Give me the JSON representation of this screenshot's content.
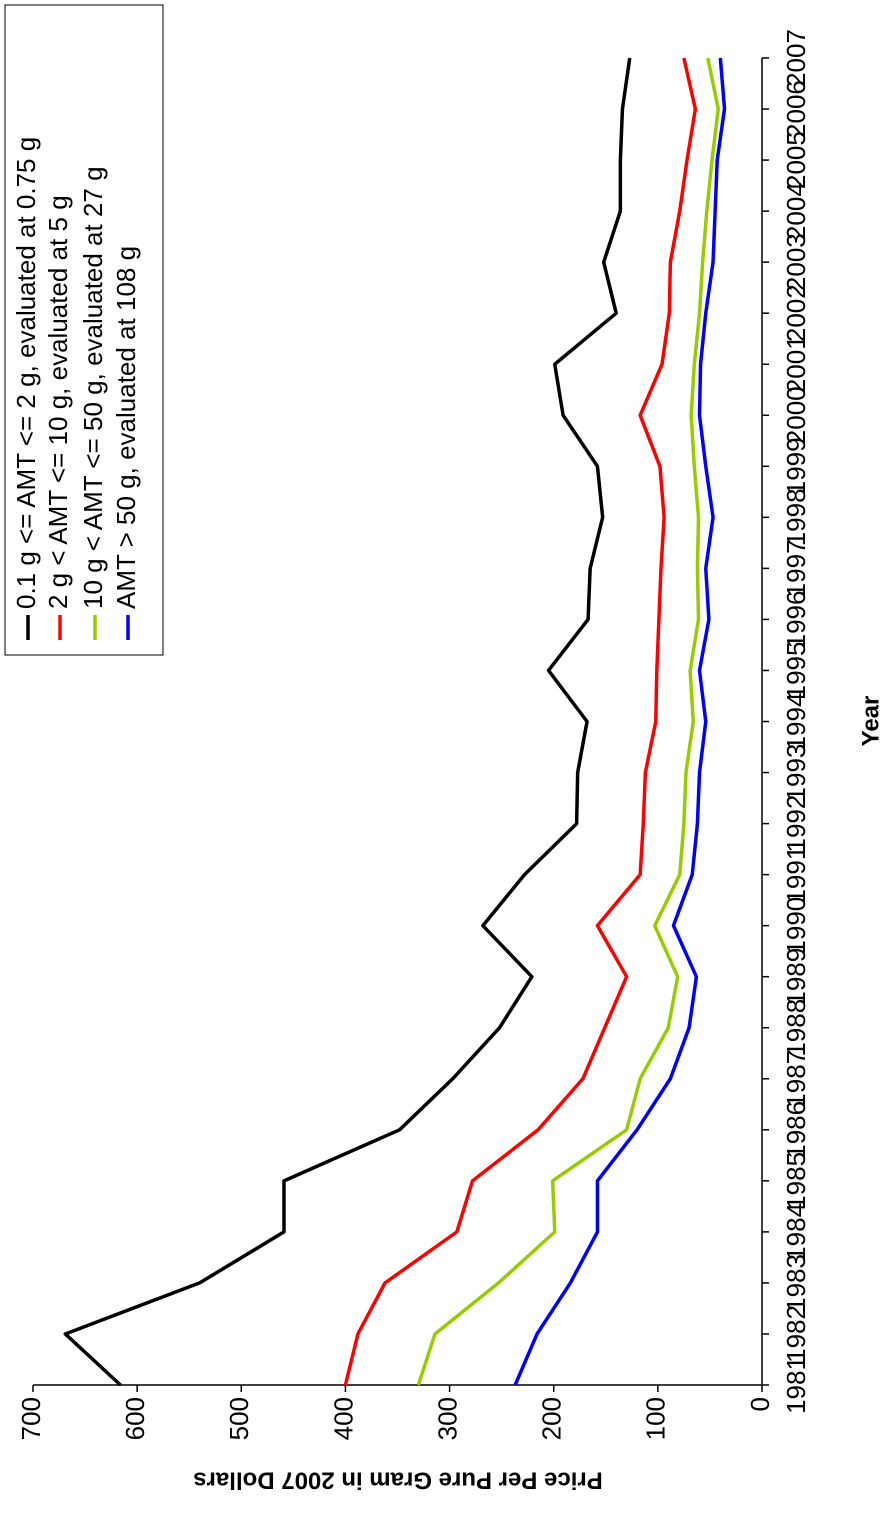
{
  "chart_data": {
    "type": "line",
    "xlabel": "Year",
    "ylabel": "Price Per Pure Gram in 2007 Dollars",
    "categories": [
      "1981",
      "1982",
      "1983",
      "1984",
      "1985",
      "1986",
      "1987",
      "1988",
      "1989",
      "1990",
      "1991",
      "1992",
      "1993",
      "1994",
      "1995",
      "1996",
      "1997",
      "1998",
      "1999",
      "2000",
      "2001",
      "2002",
      "2003",
      "2004",
      "2005",
      "2006",
      "2007"
    ],
    "ylim": [
      0,
      700
    ],
    "yticks": [
      0,
      100,
      200,
      300,
      400,
      500,
      600,
      700
    ],
    "grid": false,
    "legend": "upper right",
    "series": [
      {
        "name": "0.1 g <= AMT <= 2 g, evaluated at 0.75 g",
        "color": "#000000",
        "label_color": "#000000",
        "values": [
          616,
          669,
          540,
          459,
          459,
          348,
          297,
          252,
          221,
          268,
          228,
          178,
          177,
          168,
          205,
          167,
          165,
          153,
          158,
          191,
          199,
          140,
          152,
          136,
          136,
          134,
          127
        ]
      },
      {
        "name": "2 g < AMT <= 10 g, evaluated at 5 g",
        "color": "#ff0000",
        "label_color": "#ff0000",
        "values": [
          400,
          388,
          362,
          293,
          278,
          215,
          172,
          151,
          130,
          158,
          117,
          114,
          112,
          102,
          101,
          99,
          97,
          94,
          98,
          117,
          96,
          89,
          88,
          79,
          72,
          64,
          75
        ]
      },
      {
        "name": "10 g < AMT <= 50 g, evaluated at 27 g",
        "color": "#99cc00",
        "label_color": "#339966",
        "values": [
          330,
          314,
          253,
          199,
          201,
          130,
          117,
          90,
          81,
          103,
          79,
          75,
          73,
          66,
          69,
          61,
          62,
          61,
          65,
          68,
          65,
          60,
          57,
          53,
          48,
          42,
          52
        ]
      },
      {
        "name": "AMT > 50 g, evaluated at 108 g",
        "color": "#0000ff",
        "label_color": "#3366ff",
        "values": [
          237,
          216,
          184,
          158,
          158,
          120,
          88,
          70,
          63,
          85,
          67,
          62,
          60,
          54,
          60,
          51,
          54,
          47,
          54,
          60,
          59,
          54,
          47,
          45,
          43,
          36,
          40
        ]
      }
    ]
  }
}
